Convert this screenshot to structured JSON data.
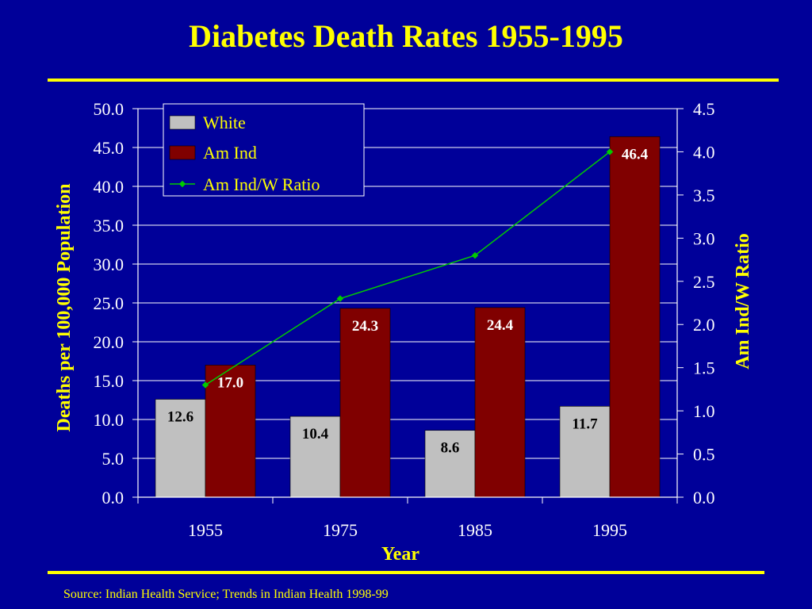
{
  "slide": {
    "title": "Diabetes Death Rates 1955-1995",
    "source": "Source: Indian Health Service; Trends in Indian Health 1998-99"
  },
  "colors": {
    "background": "#000099",
    "title_text": "#ffff00",
    "axis_text": "#ffffff",
    "white_bar": "#c0c0c0",
    "am_ind_bar": "#800000",
    "ratio_line": "#00cc00"
  },
  "chart_data": {
    "type": "bar",
    "categories": [
      "1955",
      "1975",
      "1985",
      "1995"
    ],
    "series": [
      {
        "name": "White",
        "values": [
          12.6,
          10.4,
          8.6,
          11.7
        ],
        "labels": [
          "12.6",
          "10.4",
          "8.6",
          "11.7"
        ]
      },
      {
        "name": "Am Ind",
        "values": [
          17.0,
          24.3,
          24.4,
          46.4
        ],
        "labels": [
          "17.0",
          "24.3",
          "24.4",
          "46.4"
        ]
      }
    ],
    "line_series": {
      "name": "Am Ind/W Ratio",
      "axis": "right",
      "values": [
        1.3,
        2.3,
        2.8,
        4.0
      ]
    },
    "xlabel": "Year",
    "ylabel": "Deaths per 100,000 Population",
    "y2label": "Am Ind/W Ratio",
    "ylim": [
      0,
      50
    ],
    "y2lim": [
      0,
      4.5
    ],
    "yticks": [
      "0.0",
      "5.0",
      "10.0",
      "15.0",
      "20.0",
      "25.0",
      "30.0",
      "35.0",
      "40.0",
      "45.0",
      "50.0"
    ],
    "y2ticks": [
      "0.0",
      "0.5",
      "1.0",
      "1.5",
      "2.0",
      "2.5",
      "3.0",
      "3.5",
      "4.0",
      "4.5"
    ],
    "grid": true,
    "legend": "top-left"
  }
}
